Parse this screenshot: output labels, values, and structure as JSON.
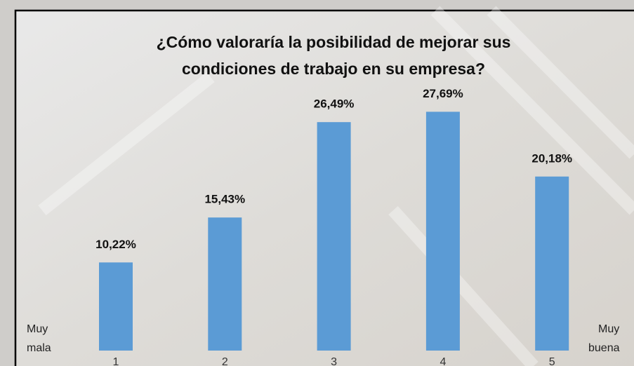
{
  "chart_data": {
    "type": "bar",
    "title": [
      "¿Cómo valoraría la posibilidad de mejorar sus",
      "condiciones de trabajo en su empresa?"
    ],
    "categories": [
      "1",
      "2",
      "3",
      "4",
      "5"
    ],
    "values": [
      10.22,
      15.43,
      26.49,
      27.69,
      20.18
    ],
    "value_labels": [
      "10,22%",
      "15,43%",
      "26,49%",
      "27,69%",
      "20,18%"
    ],
    "color": "#5b9bd5",
    "left_label": [
      "Muy",
      "mala"
    ],
    "right_label": [
      "Muy",
      "buena"
    ]
  }
}
